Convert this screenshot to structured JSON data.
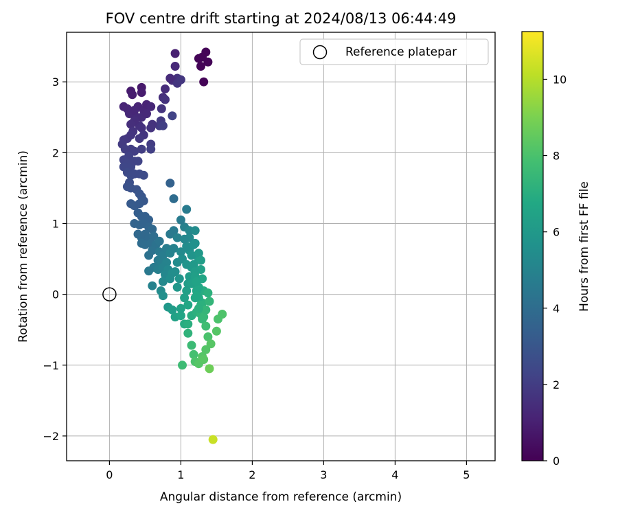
{
  "chart_data": {
    "type": "scatter",
    "title": "FOV centre drift starting at 2024/08/13 06:44:49",
    "xlabel": "Angular distance from reference (arcmin)",
    "ylabel": "Rotation from reference (arcmin)",
    "xlim": [
      -0.6,
      5.4
    ],
    "ylim": [
      -2.35,
      3.7
    ],
    "xticks": [
      0,
      1,
      2,
      3,
      4,
      5
    ],
    "xtick_labels": [
      "0",
      "1",
      "2",
      "3",
      "4",
      "5"
    ],
    "yticks": [
      -2,
      -1,
      0,
      1,
      2,
      3
    ],
    "ytick_labels": [
      "−2",
      "−1",
      "0",
      "1",
      "2",
      "3"
    ],
    "grid": true,
    "legend": {
      "position": "top-right",
      "entries": [
        "Reference platepar"
      ]
    },
    "reference_point": {
      "x": 0,
      "y": 0,
      "label": "Reference platepar"
    },
    "colorbar": {
      "label": "Hours from first FF file",
      "colormap": "viridis",
      "range": [
        0,
        11.25
      ],
      "ticks": [
        0,
        2,
        4,
        6,
        8,
        10
      ],
      "tick_labels": [
        "0",
        "2",
        "4",
        "6",
        "8",
        "10"
      ]
    },
    "series": [
      {
        "points": [
          [
            1.35,
            3.42
          ],
          [
            1.3,
            3.35
          ],
          [
            1.25,
            3.33
          ],
          [
            1.38,
            3.28
          ],
          [
            1.28,
            3.22
          ],
          [
            1.32,
            3.0
          ],
          [
            0.92,
            3.4
          ],
          [
            0.92,
            3.22
          ],
          [
            0.95,
            3.05
          ],
          [
            0.88,
            3.02
          ],
          [
            0.95,
            2.98
          ],
          [
            1.0,
            3.03
          ],
          [
            0.85,
            3.05
          ],
          [
            0.78,
            2.9
          ],
          [
            0.75,
            2.78
          ],
          [
            0.78,
            2.75
          ],
          [
            0.73,
            2.62
          ],
          [
            0.88,
            2.52
          ],
          [
            0.72,
            2.45
          ],
          [
            0.7,
            2.38
          ],
          [
            0.75,
            2.38
          ],
          [
            0.6,
            2.4
          ],
          [
            0.58,
            2.35
          ],
          [
            0.58,
            2.12
          ],
          [
            0.58,
            2.05
          ],
          [
            0.45,
            2.92
          ],
          [
            0.45,
            2.85
          ],
          [
            0.3,
            2.87
          ],
          [
            0.32,
            2.82
          ],
          [
            0.4,
            2.65
          ],
          [
            0.48,
            2.6
          ],
          [
            0.52,
            2.68
          ],
          [
            0.58,
            2.65
          ],
          [
            0.38,
            2.5
          ],
          [
            0.45,
            2.5
          ],
          [
            0.52,
            2.55
          ],
          [
            0.42,
            2.38
          ],
          [
            0.45,
            2.35
          ],
          [
            0.48,
            2.25
          ],
          [
            0.42,
            2.2
          ],
          [
            0.45,
            2.05
          ],
          [
            0.2,
            2.65
          ],
          [
            0.25,
            2.62
          ],
          [
            0.28,
            2.55
          ],
          [
            0.35,
            2.6
          ],
          [
            0.35,
            2.45
          ],
          [
            0.3,
            2.4
          ],
          [
            0.33,
            2.3
          ],
          [
            0.25,
            2.2
          ],
          [
            0.3,
            2.25
          ],
          [
            0.2,
            2.18
          ],
          [
            0.18,
            2.12
          ],
          [
            0.22,
            2.05
          ],
          [
            0.3,
            2.05
          ],
          [
            0.35,
            2.02
          ],
          [
            0.27,
            1.95
          ],
          [
            0.2,
            1.9
          ],
          [
            0.25,
            1.85
          ],
          [
            0.3,
            1.8
          ],
          [
            0.35,
            1.88
          ],
          [
            0.4,
            1.88
          ],
          [
            0.2,
            1.8
          ],
          [
            0.25,
            1.72
          ],
          [
            0.3,
            1.68
          ],
          [
            0.35,
            1.7
          ],
          [
            0.42,
            1.7
          ],
          [
            0.48,
            1.68
          ],
          [
            0.28,
            1.58
          ],
          [
            0.25,
            1.52
          ],
          [
            0.3,
            1.5
          ],
          [
            0.38,
            1.48
          ],
          [
            0.42,
            1.42
          ],
          [
            0.45,
            1.38
          ],
          [
            0.48,
            1.32
          ],
          [
            0.3,
            1.28
          ],
          [
            0.35,
            1.25
          ],
          [
            0.42,
            1.28
          ],
          [
            0.4,
            1.15
          ],
          [
            0.45,
            1.1
          ],
          [
            0.5,
            1.1
          ],
          [
            0.55,
            1.05
          ],
          [
            0.35,
            1.0
          ],
          [
            0.42,
            0.98
          ],
          [
            0.48,
            1.0
          ],
          [
            0.55,
            0.95
          ],
          [
            0.6,
            0.92
          ],
          [
            0.4,
            0.85
          ],
          [
            0.45,
            0.8
          ],
          [
            0.5,
            0.85
          ],
          [
            0.55,
            0.8
          ],
          [
            0.62,
            0.82
          ],
          [
            0.45,
            0.72
          ],
          [
            0.5,
            0.7
          ],
          [
            0.58,
            0.72
          ],
          [
            0.65,
            0.7
          ],
          [
            0.7,
            0.75
          ],
          [
            0.55,
            0.55
          ],
          [
            0.6,
            0.62
          ],
          [
            0.7,
            0.6
          ],
          [
            0.75,
            0.55
          ],
          [
            0.8,
            0.65
          ],
          [
            0.85,
            0.58
          ],
          [
            0.68,
            0.48
          ],
          [
            0.72,
            0.45
          ],
          [
            0.8,
            0.45
          ],
          [
            0.62,
            0.38
          ],
          [
            0.68,
            0.35
          ],
          [
            0.75,
            0.38
          ],
          [
            0.82,
            0.35
          ],
          [
            0.55,
            0.33
          ],
          [
            0.78,
            0.28
          ],
          [
            0.88,
            0.3
          ],
          [
            0.75,
            0.18
          ],
          [
            0.6,
            0.12
          ],
          [
            0.72,
            0.05
          ],
          [
            0.75,
            -0.02
          ],
          [
            0.85,
            0.85
          ],
          [
            0.9,
            0.9
          ],
          [
            0.95,
            0.8
          ],
          [
            0.9,
            0.65
          ],
          [
            1.0,
            0.6
          ],
          [
            0.95,
            0.45
          ],
          [
            0.92,
            0.32
          ],
          [
            0.85,
            0.22
          ],
          [
            0.95,
            0.1
          ],
          [
            0.85,
            1.57
          ],
          [
            0.9,
            1.35
          ],
          [
            0.82,
            -0.18
          ],
          [
            0.88,
            -0.22
          ],
          [
            0.92,
            -0.32
          ],
          [
            1.0,
            -0.3
          ],
          [
            1.02,
            -1.0
          ],
          [
            1.1,
            -0.55
          ],
          [
            1.15,
            -0.72
          ],
          [
            1.18,
            -0.85
          ],
          [
            1.2,
            -0.95
          ],
          [
            1.05,
            -0.42
          ],
          [
            1.08,
            0.05
          ],
          [
            1.1,
            0.15
          ],
          [
            1.12,
            0.25
          ],
          [
            1.15,
            0.38
          ],
          [
            1.05,
            0.95
          ],
          [
            1.0,
            1.05
          ],
          [
            1.08,
            1.2
          ],
          [
            1.02,
            0.5
          ],
          [
            1.08,
            0.42
          ],
          [
            0.98,
            0.22
          ],
          [
            1.12,
            0.62
          ],
          [
            1.12,
            0.8
          ],
          [
            1.2,
            0.72
          ],
          [
            1.25,
            0.5
          ],
          [
            1.28,
            0.35
          ],
          [
            1.3,
            0.22
          ],
          [
            1.3,
            -0.12
          ],
          [
            1.32,
            0.05
          ],
          [
            1.05,
            -0.05
          ],
          [
            1.1,
            -0.15
          ],
          [
            1.0,
            -0.2
          ],
          [
            1.15,
            -0.3
          ],
          [
            1.52,
            -0.35
          ],
          [
            1.58,
            -0.28
          ],
          [
            1.38,
            0.02
          ],
          [
            1.25,
            0.1
          ],
          [
            1.08,
            0.68
          ],
          [
            1.05,
            0.78
          ],
          [
            1.12,
            0.9
          ],
          [
            1.15,
            0.55
          ],
          [
            1.18,
            0.42
          ],
          [
            1.2,
            0.32
          ],
          [
            1.15,
            0.15
          ],
          [
            1.22,
            0.05
          ],
          [
            1.25,
            -0.05
          ],
          [
            1.28,
            -0.15
          ],
          [
            1.22,
            -0.25
          ],
          [
            1.3,
            -0.35
          ],
          [
            1.35,
            -0.45
          ],
          [
            1.38,
            -0.6
          ],
          [
            1.42,
            -0.7
          ],
          [
            1.35,
            -0.78
          ],
          [
            1.3,
            -0.88
          ],
          [
            1.25,
            -0.98
          ],
          [
            1.4,
            -1.05
          ],
          [
            1.5,
            -0.52
          ],
          [
            1.45,
            -2.05
          ],
          [
            1.18,
            0.7
          ],
          [
            1.2,
            0.9
          ],
          [
            1.25,
            0.58
          ],
          [
            1.28,
            0.48
          ],
          [
            1.2,
            0.25
          ],
          [
            1.22,
            0.18
          ],
          [
            1.28,
            -0.28
          ],
          [
            1.32,
            -0.32
          ],
          [
            1.35,
            -0.22
          ],
          [
            1.22,
            -0.02
          ],
          [
            1.1,
            -0.42
          ],
          [
            1.4,
            -0.1
          ],
          [
            1.32,
            -0.92
          ],
          [
            1.2,
            -0.05
          ],
          [
            1.25,
            -0.2
          ]
        ]
      }
    ]
  }
}
